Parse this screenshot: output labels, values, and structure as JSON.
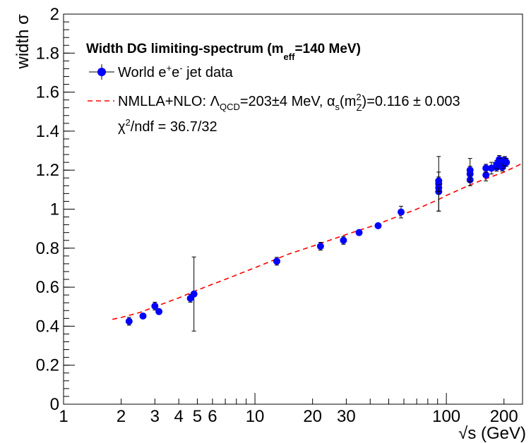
{
  "chart_data": {
    "type": "scatter",
    "title": "",
    "xlabel": "√s (GeV)",
    "ylabel": "width σ",
    "xscale": "log",
    "xlim": [
      1,
      250
    ],
    "ylim": [
      0,
      2
    ],
    "grid": false,
    "legend_placement": "top-left",
    "x_tick_labels": [
      {
        "v": 1,
        "t": "1"
      },
      {
        "v": 2,
        "t": "2"
      },
      {
        "v": 3,
        "t": "3"
      },
      {
        "v": 4,
        "t": "4"
      },
      {
        "v": 5,
        "t": "5"
      },
      {
        "v": 6,
        "t": "6"
      },
      {
        "v": 10,
        "t": "10"
      },
      {
        "v": 20,
        "t": "20"
      },
      {
        "v": 30,
        "t": "30"
      },
      {
        "v": 100,
        "t": "100"
      },
      {
        "v": 200,
        "t": "200"
      }
    ],
    "y_ticks": [
      0,
      0.2,
      0.4,
      0.6,
      0.8,
      1,
      1.2,
      1.4,
      1.6,
      1.8,
      2
    ],
    "y_tick_labels": [
      "0",
      "0.2",
      "0.4",
      "0.6",
      "0.8",
      "1",
      "1.2",
      "1.4",
      "1.6",
      "1.8",
      "2"
    ],
    "legend": {
      "header": "Width DG limiting-spectrum (m",
      "header_sub": "eff",
      "header_tail": "=140 MeV)",
      "data_label": "World e",
      "data_sup1": "+",
      "data_mid": "e",
      "data_sup2": "-",
      "data_tail": " jet data",
      "fit_label_a": "NMLLA+NLO: Λ",
      "fit_sub_a": "QCD",
      "fit_label_b": "=203±4 MeV, α",
      "fit_sub_b": "s",
      "fit_label_c": "(m",
      "fit_sup_c": "2",
      "fit_sub_c": "Z",
      "fit_label_d": ")=0.116 ± 0.003",
      "chi_a": "χ",
      "chi_sup": "2",
      "chi_b": "/ndf = 36.7/32"
    },
    "series": [
      {
        "name": "World e+e- jet data",
        "color": "#0000ff",
        "points": [
          {
            "x": 2.2,
            "y": 0.425,
            "err": 0.02
          },
          {
            "x": 2.6,
            "y": 0.452,
            "err": 0.01
          },
          {
            "x": 3.0,
            "y": 0.503,
            "err": 0.02
          },
          {
            "x": 3.15,
            "y": 0.475,
            "err": 0.01
          },
          {
            "x": 4.6,
            "y": 0.543,
            "err": 0.02
          },
          {
            "x": 4.8,
            "y": 0.565,
            "err": 0.19
          },
          {
            "x": 13.0,
            "y": 0.733,
            "err": 0.02
          },
          {
            "x": 22.0,
            "y": 0.81,
            "err": 0.02
          },
          {
            "x": 29.0,
            "y": 0.84,
            "err": 0.02
          },
          {
            "x": 35.0,
            "y": 0.88,
            "err": 0.01
          },
          {
            "x": 44.0,
            "y": 0.915,
            "err": 0.01
          },
          {
            "x": 58.0,
            "y": 0.985,
            "err": 0.03
          },
          {
            "x": 91.2,
            "y": 1.09,
            "err": 0.1
          },
          {
            "x": 91.2,
            "y": 1.11,
            "err": 0.02
          },
          {
            "x": 91.2,
            "y": 1.13,
            "err": 0.14
          },
          {
            "x": 91.2,
            "y": 1.145,
            "err": 0.02
          },
          {
            "x": 133.0,
            "y": 1.15,
            "err": 0.03
          },
          {
            "x": 133.0,
            "y": 1.18,
            "err": 0.04
          },
          {
            "x": 133.0,
            "y": 1.2,
            "err": 0.06
          },
          {
            "x": 161.0,
            "y": 1.175,
            "err": 0.03
          },
          {
            "x": 161.0,
            "y": 1.21,
            "err": 0.02
          },
          {
            "x": 172.0,
            "y": 1.21,
            "err": 0.03
          },
          {
            "x": 183.0,
            "y": 1.215,
            "err": 0.02
          },
          {
            "x": 183.0,
            "y": 1.23,
            "err": 0.02
          },
          {
            "x": 189.0,
            "y": 1.225,
            "err": 0.02
          },
          {
            "x": 189.0,
            "y": 1.255,
            "err": 0.02
          },
          {
            "x": 192.0,
            "y": 1.24,
            "err": 0.02
          },
          {
            "x": 196.0,
            "y": 1.215,
            "err": 0.02
          },
          {
            "x": 200.0,
            "y": 1.23,
            "err": 0.02
          },
          {
            "x": 200.0,
            "y": 1.245,
            "err": 0.02
          },
          {
            "x": 202.0,
            "y": 1.25,
            "err": 0.02
          },
          {
            "x": 206.0,
            "y": 1.24,
            "err": 0.02
          }
        ]
      },
      {
        "name": "NMLLA+NLO fit",
        "color": "#ff0000",
        "style": "dashed",
        "points": [
          {
            "x": 1.8,
            "y": 0.435
          },
          {
            "x": 2.0,
            "y": 0.445
          },
          {
            "x": 2.5,
            "y": 0.47
          },
          {
            "x": 3.0,
            "y": 0.5
          },
          {
            "x": 4.0,
            "y": 0.545
          },
          {
            "x": 5.0,
            "y": 0.585
          },
          {
            "x": 7.0,
            "y": 0.64
          },
          {
            "x": 10.0,
            "y": 0.7
          },
          {
            "x": 15.0,
            "y": 0.77
          },
          {
            "x": 20.0,
            "y": 0.81
          },
          {
            "x": 30.0,
            "y": 0.87
          },
          {
            "x": 40.0,
            "y": 0.91
          },
          {
            "x": 50.0,
            "y": 0.945
          },
          {
            "x": 70.0,
            "y": 1.0
          },
          {
            "x": 91.2,
            "y": 1.05
          },
          {
            "x": 100.0,
            "y": 1.07
          },
          {
            "x": 130.0,
            "y": 1.12
          },
          {
            "x": 150.0,
            "y": 1.145
          },
          {
            "x": 200.0,
            "y": 1.19
          },
          {
            "x": 250.0,
            "y": 1.235
          }
        ]
      }
    ]
  }
}
